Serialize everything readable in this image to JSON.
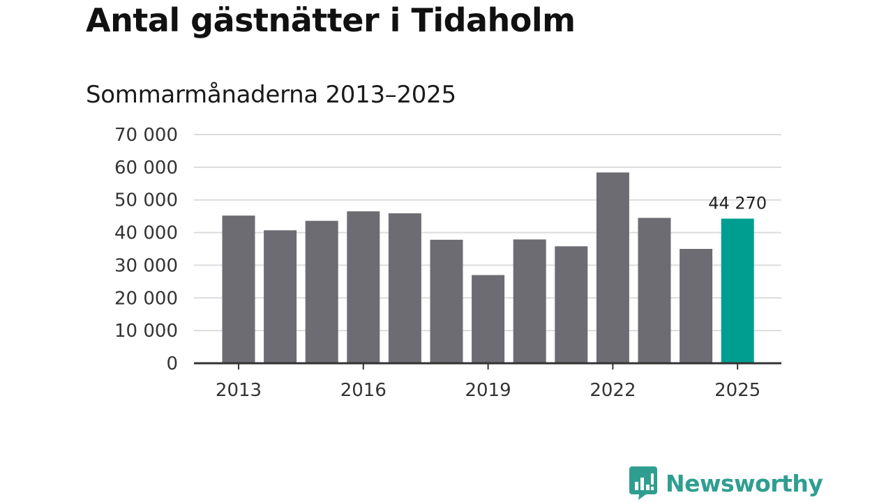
{
  "chart_data": {
    "type": "bar",
    "title": "Antal gästnätter i Tidaholm",
    "subtitle": "Sommarmånaderna 2013–2025",
    "categories": [
      "2013",
      "2014",
      "2015",
      "2016",
      "2017",
      "2018",
      "2019",
      "2020",
      "2021",
      "2022",
      "2023",
      "2024",
      "2025"
    ],
    "values": [
      45200,
      40700,
      43600,
      46500,
      45900,
      37800,
      27000,
      37900,
      35800,
      58400,
      44500,
      35000,
      44270
    ],
    "x_tick_labels": [
      "2013",
      "2016",
      "2019",
      "2022",
      "2025"
    ],
    "y_ticks": [
      0,
      10000,
      20000,
      30000,
      40000,
      50000,
      60000,
      70000
    ],
    "y_tick_labels": [
      "0",
      "10 000",
      "20 000",
      "30 000",
      "40 000",
      "50 000",
      "60 000",
      "70 000"
    ],
    "ylim": [
      0,
      70000
    ],
    "grid": true,
    "highlight": {
      "category": "2025",
      "label": "44 270"
    },
    "colors": {
      "bar": "#6d6c72",
      "highlight": "#009e91",
      "grid": "#dcdcdc",
      "axis": "#333333"
    }
  },
  "brand": {
    "name": "Newsworthy",
    "icon": "newsworthy-logo-icon",
    "color": "#2f9e91"
  }
}
